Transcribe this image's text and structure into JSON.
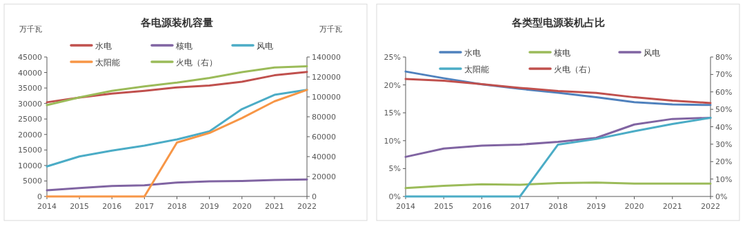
{
  "chart_data": [
    {
      "type": "line",
      "title": "各电源装机容量",
      "ylabel": "万千瓦",
      "y2label": "万千瓦",
      "categories": [
        "2014",
        "2015",
        "2016",
        "2017",
        "2018",
        "2019",
        "2020",
        "2021",
        "2022"
      ],
      "series": [
        {
          "name": "水电",
          "color": "#c0504d",
          "values": [
            30400,
            31900,
            33200,
            34100,
            35200,
            35800,
            37000,
            39100,
            40200
          ]
        },
        {
          "name": "核电",
          "color": "#8064a2",
          "values": [
            2000,
            2700,
            3400,
            3600,
            4500,
            4900,
            5000,
            5300,
            5500
          ]
        },
        {
          "name": "风电",
          "color": "#4bacc6",
          "values": [
            9700,
            12900,
            14800,
            16400,
            18400,
            21000,
            28200,
            32800,
            34400
          ]
        },
        {
          "name": "太阳能",
          "color": "#f79646",
          "values": [
            0,
            0,
            0,
            0,
            17400,
            20500,
            25300,
            30700,
            34400
          ]
        },
        {
          "name": "火电（右）",
          "color": "#9bbb59",
          "axis": "y2",
          "values": [
            91700,
            99500,
            106000,
            110500,
            114300,
            119000,
            124800,
            129500,
            130700
          ]
        }
      ],
      "ylim": [
        0,
        45000
      ],
      "yticks": [
        0,
        5000,
        10000,
        15000,
        20000,
        25000,
        30000,
        35000,
        40000,
        45000
      ],
      "y2lim": [
        0,
        140000
      ],
      "y2ticks": [
        0,
        20000,
        40000,
        60000,
        80000,
        100000,
        120000,
        140000
      ],
      "grid": false,
      "legend": "top",
      "marker": "none",
      "line_style": "solid"
    },
    {
      "type": "line",
      "title": "各类型电源装机占比",
      "categories": [
        "2014",
        "2015",
        "2016",
        "2017",
        "2018",
        "2019",
        "2020",
        "2021",
        "2022"
      ],
      "series": [
        {
          "name": "水电",
          "color": "#4f81bd",
          "values": [
            22.4,
            21.2,
            20.1,
            19.3,
            18.6,
            17.8,
            16.9,
            16.5,
            16.4
          ]
        },
        {
          "name": "核电",
          "color": "#9bbb59",
          "values": [
            1.5,
            1.9,
            2.2,
            2.1,
            2.4,
            2.5,
            2.3,
            2.3,
            2.3
          ]
        },
        {
          "name": "风电",
          "color": "#8064a2",
          "values": [
            7.1,
            8.6,
            9.1,
            9.3,
            9.8,
            10.5,
            12.9,
            13.9,
            14.1
          ]
        },
        {
          "name": "太阳能",
          "color": "#4bacc6",
          "values": [
            0,
            0,
            0,
            0,
            9.3,
            10.3,
            11.7,
            13.0,
            14.1
          ]
        },
        {
          "name": "火电（右）",
          "color": "#c0504d",
          "axis": "y2",
          "values": [
            67.4,
            66.4,
            64.4,
            62.3,
            60.5,
            59.4,
            56.9,
            55.0,
            53.6
          ]
        }
      ],
      "ylim": [
        0,
        25
      ],
      "yticks": [
        {
          "value": 0,
          "label": "0%"
        },
        {
          "value": 5,
          "label": "5%"
        },
        {
          "value": 10,
          "label": "10%"
        },
        {
          "value": 15,
          "label": "15%"
        },
        {
          "value": 20,
          "label": "20%"
        },
        {
          "value": 25,
          "label": "25%"
        }
      ],
      "y2lim": [
        0,
        80
      ],
      "y2ticks": [
        {
          "value": 0,
          "label": "0%"
        },
        {
          "value": 10,
          "label": "10%"
        },
        {
          "value": 20,
          "label": "20%"
        },
        {
          "value": 30,
          "label": "30%"
        },
        {
          "value": 40,
          "label": "40%"
        },
        {
          "value": 50,
          "label": "50%"
        },
        {
          "value": 60,
          "label": "60%"
        },
        {
          "value": 70,
          "label": "70%"
        },
        {
          "value": 80,
          "label": "80%"
        }
      ],
      "grid": false,
      "legend": "top",
      "marker": "none",
      "line_style": "solid"
    }
  ]
}
